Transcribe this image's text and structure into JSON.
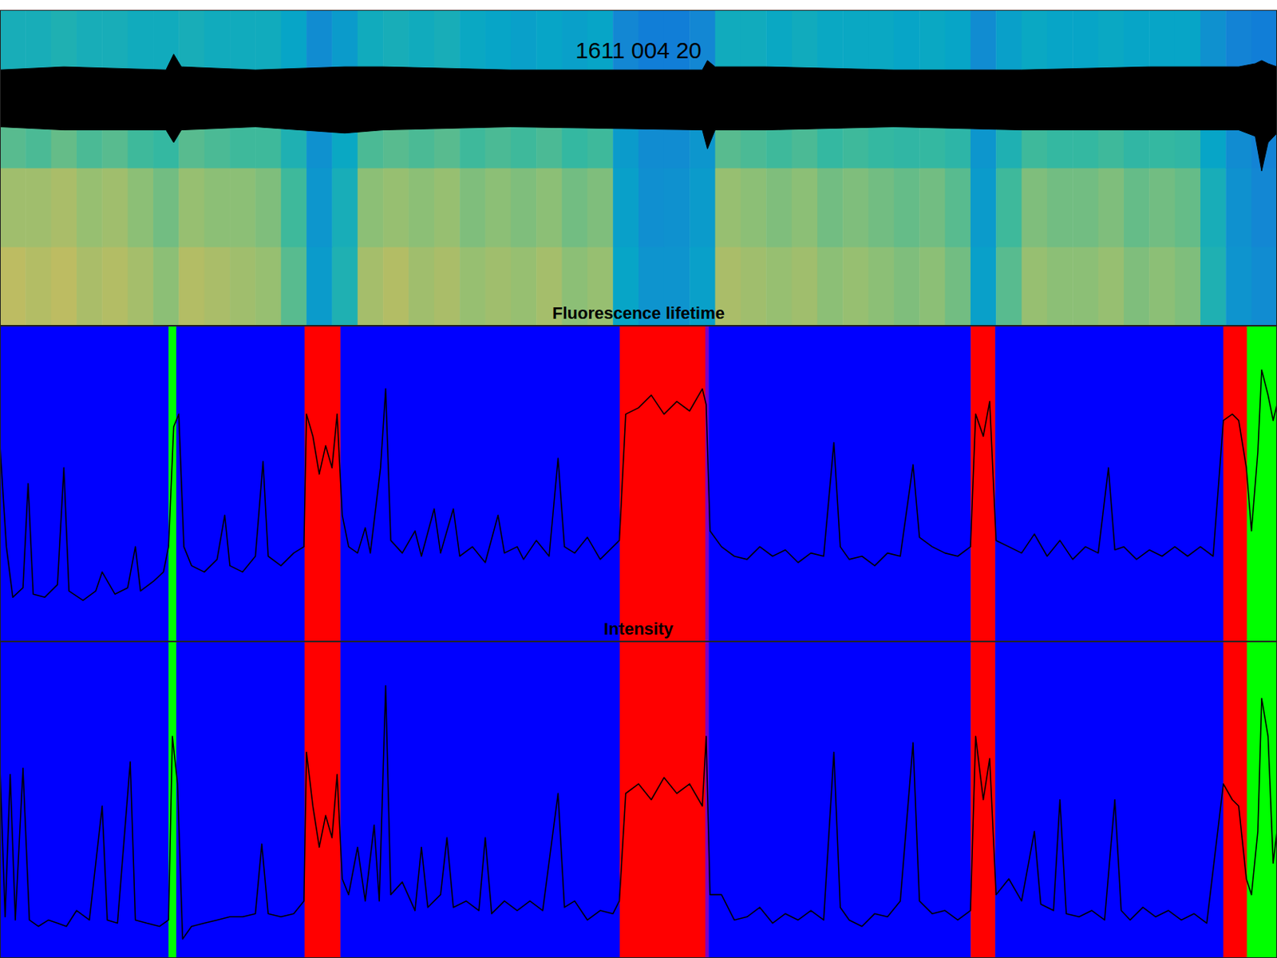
{
  "state_bands": {
    "start": [
      0,
      13.2,
      13.8,
      23.85,
      26.66,
      48.53,
      55.23,
      55.5,
      76.02,
      77.93,
      95.79,
      97.64
    ],
    "end": [
      13.2,
      13.8,
      23.85,
      26.66,
      48.53,
      55.23,
      55.5,
      76.02,
      77.93,
      95.79,
      97.64,
      100
    ],
    "colors": [
      "#0000ff",
      "#00ff00",
      "#0000ff",
      "#ff0000",
      "#0000ff",
      "#ff0000",
      "#8000c0",
      "#0000ff",
      "#ff0000",
      "#0000ff",
      "#ff0000",
      "#00ff00"
    ]
  },
  "chart_data": [
    {
      "type": "heatmap",
      "title": "1611 004 20",
      "xlim": [
        0,
        100
      ],
      "ylim": [
        0,
        1
      ],
      "tick_labels": false,
      "x": [
        0,
        2,
        4,
        6,
        8,
        10,
        12,
        14,
        16,
        18,
        20,
        22,
        24,
        26,
        28,
        30,
        32,
        34,
        36,
        38,
        40,
        42,
        44,
        46,
        48,
        50,
        52,
        54,
        56,
        58,
        60,
        62,
        64,
        66,
        68,
        70,
        72,
        74,
        76,
        78,
        80,
        82,
        84,
        86,
        88,
        90,
        92,
        94,
        96,
        98,
        100
      ],
      "y": [
        0,
        0.25,
        0.5,
        0.75,
        1
      ],
      "color_range": [
        0,
        1
      ],
      "cells": [
        [
          0.8,
          0.78,
          0.8,
          0.76,
          0.78,
          0.75,
          0.7,
          0.78,
          0.76,
          0.74,
          0.72,
          0.62,
          0.38,
          0.5,
          0.75,
          0.78,
          0.74,
          0.76,
          0.72,
          0.74,
          0.72,
          0.75,
          0.7,
          0.72,
          0.42,
          0.35,
          0.35,
          0.4,
          0.76,
          0.74,
          0.72,
          0.74,
          0.7,
          0.72,
          0.7,
          0.68,
          0.7,
          0.66,
          0.4,
          0.62,
          0.72,
          0.7,
          0.7,
          0.72,
          0.68,
          0.7,
          0.68,
          0.5,
          0.35,
          0.32
        ],
        [
          0.74,
          0.74,
          0.76,
          0.72,
          0.74,
          0.7,
          0.66,
          0.72,
          0.7,
          0.7,
          0.68,
          0.58,
          0.36,
          0.48,
          0.7,
          0.72,
          0.7,
          0.72,
          0.68,
          0.7,
          0.68,
          0.7,
          0.66,
          0.68,
          0.4,
          0.33,
          0.34,
          0.38,
          0.72,
          0.7,
          0.68,
          0.7,
          0.66,
          0.68,
          0.66,
          0.64,
          0.66,
          0.62,
          0.38,
          0.58,
          0.68,
          0.66,
          0.66,
          0.68,
          0.64,
          0.66,
          0.64,
          0.48,
          0.34,
          0.3
        ],
        [
          0.62,
          0.6,
          0.64,
          0.6,
          0.62,
          0.58,
          0.56,
          0.62,
          0.6,
          0.58,
          0.58,
          0.5,
          0.34,
          0.44,
          0.6,
          0.62,
          0.6,
          0.62,
          0.58,
          0.6,
          0.58,
          0.6,
          0.56,
          0.58,
          0.38,
          0.32,
          0.32,
          0.36,
          0.62,
          0.6,
          0.58,
          0.6,
          0.56,
          0.58,
          0.56,
          0.55,
          0.56,
          0.54,
          0.36,
          0.5,
          0.58,
          0.56,
          0.56,
          0.58,
          0.55,
          0.56,
          0.55,
          0.42,
          0.32,
          0.28
        ],
        [
          0.48,
          0.48,
          0.5,
          0.48,
          0.48,
          0.46,
          0.46,
          0.48,
          0.46,
          0.46,
          0.46,
          0.42,
          0.32,
          0.38,
          0.46,
          0.48,
          0.46,
          0.48,
          0.44,
          0.42,
          0.4,
          0.42,
          0.4,
          0.42,
          0.3,
          0.26,
          0.26,
          0.3,
          0.46,
          0.46,
          0.44,
          0.46,
          0.44,
          0.44,
          0.44,
          0.42,
          0.44,
          0.42,
          0.32,
          0.4,
          0.44,
          0.42,
          0.42,
          0.44,
          0.42,
          0.42,
          0.42,
          0.34,
          0.28,
          0.26
        ]
      ],
      "eeg": {
        "x": [
          0,
          5,
          13,
          13.6,
          14.2,
          20,
          27,
          30,
          40,
          55,
          55.4,
          56,
          60,
          70,
          80,
          90,
          97,
          98.3,
          98.8,
          99.3,
          100
        ],
        "upper": [
          0.81,
          0.82,
          0.81,
          0.86,
          0.82,
          0.81,
          0.82,
          0.82,
          0.81,
          0.81,
          0.84,
          0.82,
          0.82,
          0.81,
          0.81,
          0.82,
          0.82,
          0.83,
          0.84,
          0.83,
          0.82
        ],
        "lower": [
          0.63,
          0.62,
          0.62,
          0.58,
          0.62,
          0.63,
          0.61,
          0.62,
          0.63,
          0.62,
          0.56,
          0.62,
          0.62,
          0.63,
          0.62,
          0.62,
          0.62,
          0.6,
          0.49,
          0.58,
          0.61
        ]
      }
    },
    {
      "type": "line",
      "title": "Fluorescence lifetime",
      "xlim": [
        0,
        100
      ],
      "ylim": [
        0,
        1
      ],
      "tick_labels": false,
      "series": [
        {
          "color": "#000000",
          "x": [
            0,
            0.5,
            1,
            1.8,
            2.2,
            2.6,
            3.5,
            4.5,
            5.0,
            5.4,
            6.5,
            7.5,
            8.0,
            9.0,
            10.0,
            10.6,
            11.0,
            12.0,
            12.8,
            13.2,
            13.6,
            14.0,
            14.4,
            15.0,
            16.0,
            17.0,
            17.6,
            18.0,
            19.0,
            20.0,
            20.6,
            21.0,
            22.0,
            23.0,
            23.8,
            24.0,
            24.5,
            25.0,
            25.5,
            26.0,
            26.4,
            26.8,
            27.3,
            28.0,
            28.6,
            29.0,
            29.8,
            30.2,
            30.6,
            31.5,
            32.5,
            33.0,
            34.0,
            34.5,
            35.5,
            36.0,
            37.0,
            38.0,
            39.0,
            39.5,
            40.5,
            41.0,
            42.0,
            43.0,
            43.7,
            44.2,
            45.0,
            46.0,
            47.0,
            48.0,
            48.5,
            49.0,
            50.0,
            51.0,
            52.0,
            53.0,
            54.0,
            55.0,
            55.3,
            55.6,
            56.5,
            57.5,
            58.5,
            59.5,
            60.5,
            61.5,
            62.5,
            63.5,
            64.5,
            65.3,
            65.8,
            66.5,
            67.5,
            68.5,
            69.5,
            70.5,
            71.5,
            72.0,
            73.0,
            74.0,
            75.0,
            76.0,
            76.4,
            77.0,
            77.5,
            78.0,
            79.0,
            80.0,
            81.0,
            82.0,
            83.0,
            84.0,
            85.0,
            86.0,
            86.8,
            87.3,
            88.0,
            89.0,
            90.0,
            91.0,
            92.0,
            93.0,
            94.0,
            95.0,
            95.8,
            96.5,
            97.0,
            97.6,
            98.0,
            98.5,
            98.8,
            99.3,
            99.7,
            100
          ],
          "values": [
            0.62,
            0.3,
            0.14,
            0.17,
            0.5,
            0.15,
            0.14,
            0.18,
            0.55,
            0.16,
            0.13,
            0.16,
            0.22,
            0.15,
            0.17,
            0.3,
            0.16,
            0.19,
            0.22,
            0.3,
            0.68,
            0.72,
            0.3,
            0.24,
            0.22,
            0.26,
            0.4,
            0.24,
            0.22,
            0.27,
            0.57,
            0.27,
            0.24,
            0.28,
            0.3,
            0.72,
            0.65,
            0.53,
            0.62,
            0.55,
            0.72,
            0.4,
            0.3,
            0.28,
            0.36,
            0.28,
            0.55,
            0.8,
            0.32,
            0.28,
            0.35,
            0.27,
            0.42,
            0.28,
            0.42,
            0.27,
            0.3,
            0.25,
            0.4,
            0.28,
            0.3,
            0.26,
            0.32,
            0.27,
            0.58,
            0.3,
            0.28,
            0.33,
            0.26,
            0.3,
            0.32,
            0.72,
            0.74,
            0.78,
            0.72,
            0.76,
            0.73,
            0.8,
            0.75,
            0.35,
            0.3,
            0.27,
            0.26,
            0.3,
            0.27,
            0.29,
            0.25,
            0.28,
            0.27,
            0.63,
            0.3,
            0.26,
            0.27,
            0.24,
            0.28,
            0.27,
            0.56,
            0.33,
            0.3,
            0.28,
            0.27,
            0.3,
            0.72,
            0.65,
            0.76,
            0.32,
            0.3,
            0.28,
            0.34,
            0.27,
            0.32,
            0.26,
            0.3,
            0.28,
            0.55,
            0.29,
            0.3,
            0.26,
            0.29,
            0.27,
            0.3,
            0.27,
            0.3,
            0.27,
            0.7,
            0.72,
            0.7,
            0.55,
            0.35,
            0.6,
            0.86,
            0.78,
            0.7,
            0.75
          ]
        }
      ]
    },
    {
      "type": "line",
      "title": "Intensity",
      "xlim": [
        0,
        100
      ],
      "ylim": [
        0,
        1
      ],
      "tick_labels": false,
      "series": [
        {
          "color": "#000000",
          "x": [
            0,
            0.4,
            0.8,
            1.2,
            1.8,
            2.3,
            3.0,
            3.8,
            4.5,
            5.2,
            6.0,
            7.0,
            8.0,
            8.4,
            9.2,
            10.2,
            10.6,
            11.5,
            12.5,
            13.2,
            13.5,
            13.9,
            14.3,
            15.0,
            16.0,
            17.0,
            18.0,
            19.0,
            20.0,
            20.5,
            21.0,
            22.0,
            23.0,
            23.8,
            24.0,
            24.5,
            25.0,
            25.5,
            26.0,
            26.4,
            26.8,
            27.3,
            28.0,
            28.6,
            29.3,
            29.7,
            30.2,
            30.6,
            31.5,
            32.5,
            33.0,
            33.5,
            34.5,
            35.0,
            35.5,
            36.5,
            37.5,
            38.0,
            38.5,
            39.5,
            40.5,
            41.5,
            42.5,
            43.7,
            44.2,
            45.0,
            46.0,
            47.0,
            48.0,
            48.5,
            49.0,
            50.0,
            51.0,
            52.0,
            53.0,
            54.0,
            55.0,
            55.3,
            55.6,
            56.5,
            57.5,
            58.5,
            59.5,
            60.5,
            61.5,
            62.5,
            63.5,
            64.5,
            65.3,
            65.8,
            66.5,
            67.5,
            68.5,
            69.5,
            70.5,
            71.5,
            72.0,
            73.0,
            74.0,
            75.0,
            76.0,
            76.4,
            77.0,
            77.5,
            78.0,
            79.0,
            80.0,
            81.0,
            81.5,
            82.5,
            83.0,
            83.5,
            84.5,
            85.5,
            86.5,
            87.3,
            87.8,
            88.5,
            89.5,
            90.5,
            91.5,
            92.5,
            93.5,
            94.5,
            95.8,
            96.5,
            97.0,
            97.6,
            98.0,
            98.5,
            98.8,
            99.3,
            99.7,
            100
          ],
          "values": [
            0.6,
            0.13,
            0.58,
            0.12,
            0.6,
            0.12,
            0.1,
            0.12,
            0.11,
            0.1,
            0.15,
            0.12,
            0.48,
            0.12,
            0.11,
            0.62,
            0.12,
            0.11,
            0.1,
            0.12,
            0.7,
            0.55,
            0.06,
            0.1,
            0.11,
            0.12,
            0.13,
            0.13,
            0.14,
            0.36,
            0.14,
            0.13,
            0.14,
            0.18,
            0.65,
            0.48,
            0.35,
            0.45,
            0.38,
            0.58,
            0.25,
            0.2,
            0.35,
            0.18,
            0.42,
            0.18,
            0.86,
            0.2,
            0.24,
            0.15,
            0.35,
            0.16,
            0.2,
            0.38,
            0.16,
            0.18,
            0.15,
            0.38,
            0.14,
            0.18,
            0.15,
            0.18,
            0.15,
            0.52,
            0.16,
            0.18,
            0.12,
            0.15,
            0.14,
            0.18,
            0.52,
            0.55,
            0.5,
            0.57,
            0.52,
            0.55,
            0.48,
            0.7,
            0.2,
            0.2,
            0.12,
            0.13,
            0.16,
            0.11,
            0.14,
            0.12,
            0.15,
            0.12,
            0.65,
            0.16,
            0.12,
            0.1,
            0.14,
            0.13,
            0.18,
            0.68,
            0.18,
            0.14,
            0.15,
            0.12,
            0.15,
            0.7,
            0.5,
            0.63,
            0.2,
            0.25,
            0.18,
            0.4,
            0.17,
            0.15,
            0.5,
            0.14,
            0.13,
            0.15,
            0.12,
            0.5,
            0.15,
            0.12,
            0.16,
            0.13,
            0.15,
            0.12,
            0.14,
            0.11,
            0.55,
            0.5,
            0.48,
            0.25,
            0.2,
            0.4,
            0.82,
            0.7,
            0.3,
            0.4
          ]
        }
      ]
    }
  ]
}
